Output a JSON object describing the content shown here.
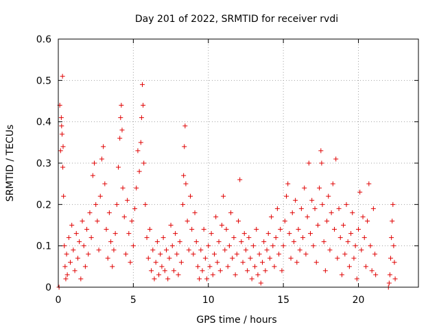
{
  "chart_data": {
    "type": "scatter",
    "title": "Day 201 of 2022, SRMTID for receiver rvdi",
    "xlabel": "GPS time / hours",
    "ylabel": "SRMTID / TECUs",
    "xlim": [
      0,
      24
    ],
    "ylim": [
      0,
      0.6
    ],
    "xticks": [
      0,
      5,
      10,
      15,
      20
    ],
    "xtick_labels": [
      "0",
      "5",
      "10",
      "15",
      "20"
    ],
    "yticks": [
      0,
      0.1,
      0.2,
      0.3,
      0.4,
      0.5,
      0.6
    ],
    "ytick_labels": [
      "0",
      "0.1",
      "0.2",
      "0.3",
      "0.4",
      "0.5",
      "0.6"
    ],
    "grid": true,
    "marker": "+",
    "color": "#e00000",
    "series": [
      {
        "name": "SRMTID",
        "points": [
          [
            0.05,
            0.0
          ],
          [
            0.1,
            0.44
          ],
          [
            0.15,
            0.33
          ],
          [
            0.2,
            0.41
          ],
          [
            0.22,
            0.39
          ],
          [
            0.25,
            0.37
          ],
          [
            0.28,
            0.51
          ],
          [
            0.3,
            0.29
          ],
          [
            0.32,
            0.34
          ],
          [
            0.35,
            0.22
          ],
          [
            0.4,
            0.1
          ],
          [
            0.45,
            0.05
          ],
          [
            0.5,
            0.02
          ],
          [
            0.55,
            0.08
          ],
          [
            0.6,
            0.03
          ],
          [
            0.7,
            0.12
          ],
          [
            0.8,
            0.06
          ],
          [
            0.9,
            0.15
          ],
          [
            1.0,
            0.09
          ],
          [
            1.1,
            0.04
          ],
          [
            1.2,
            0.13
          ],
          [
            1.3,
            0.07
          ],
          [
            1.4,
            0.11
          ],
          [
            1.5,
            0.02
          ],
          [
            1.6,
            0.16
          ],
          [
            1.7,
            0.1
          ],
          [
            1.8,
            0.05
          ],
          [
            1.9,
            0.14
          ],
          [
            2.0,
            0.08
          ],
          [
            2.1,
            0.18
          ],
          [
            2.2,
            0.12
          ],
          [
            2.3,
            0.27
          ],
          [
            2.4,
            0.3
          ],
          [
            2.5,
            0.2
          ],
          [
            2.6,
            0.16
          ],
          [
            2.7,
            0.09
          ],
          [
            2.8,
            0.22
          ],
          [
            2.9,
            0.31
          ],
          [
            3.0,
            0.34
          ],
          [
            3.1,
            0.25
          ],
          [
            3.2,
            0.14
          ],
          [
            3.3,
            0.07
          ],
          [
            3.4,
            0.18
          ],
          [
            3.5,
            0.11
          ],
          [
            3.6,
            0.05
          ],
          [
            3.7,
            0.09
          ],
          [
            3.8,
            0.13
          ],
          [
            3.9,
            0.2
          ],
          [
            4.0,
            0.29
          ],
          [
            4.1,
            0.36
          ],
          [
            4.15,
            0.41
          ],
          [
            4.2,
            0.44
          ],
          [
            4.25,
            0.38
          ],
          [
            4.3,
            0.24
          ],
          [
            4.4,
            0.17
          ],
          [
            4.5,
            0.08
          ],
          [
            4.6,
            0.21
          ],
          [
            4.7,
            0.13
          ],
          [
            4.8,
            0.06
          ],
          [
            4.9,
            0.16
          ],
          [
            5.0,
            0.1
          ],
          [
            5.1,
            0.19
          ],
          [
            5.2,
            0.24
          ],
          [
            5.3,
            0.33
          ],
          [
            5.4,
            0.28
          ],
          [
            5.5,
            0.35
          ],
          [
            5.55,
            0.41
          ],
          [
            5.6,
            0.49
          ],
          [
            5.65,
            0.44
          ],
          [
            5.7,
            0.3
          ],
          [
            5.8,
            0.2
          ],
          [
            5.9,
            0.12
          ],
          [
            6.0,
            0.07
          ],
          [
            6.1,
            0.14
          ],
          [
            6.2,
            0.04
          ],
          [
            6.3,
            0.09
          ],
          [
            6.4,
            0.02
          ],
          [
            6.5,
            0.06
          ],
          [
            6.6,
            0.11
          ],
          [
            6.7,
            0.03
          ],
          [
            6.8,
            0.08
          ],
          [
            6.9,
            0.05
          ],
          [
            7.0,
            0.12
          ],
          [
            7.1,
            0.04
          ],
          [
            7.2,
            0.09
          ],
          [
            7.3,
            0.02
          ],
          [
            7.4,
            0.07
          ],
          [
            7.5,
            0.15
          ],
          [
            7.6,
            0.1
          ],
          [
            7.7,
            0.04
          ],
          [
            7.8,
            0.13
          ],
          [
            7.9,
            0.08
          ],
          [
            8.0,
            0.03
          ],
          [
            8.1,
            0.11
          ],
          [
            8.2,
            0.06
          ],
          [
            8.3,
            0.2
          ],
          [
            8.35,
            0.27
          ],
          [
            8.4,
            0.34
          ],
          [
            8.45,
            0.39
          ],
          [
            8.5,
            0.25
          ],
          [
            8.6,
            0.16
          ],
          [
            8.7,
            0.09
          ],
          [
            8.8,
            0.22
          ],
          [
            8.9,
            0.14
          ],
          [
            9.0,
            0.08
          ],
          [
            9.1,
            0.18
          ],
          [
            9.2,
            0.11
          ],
          [
            9.3,
            0.05
          ],
          [
            9.4,
            0.02
          ],
          [
            9.5,
            0.09
          ],
          [
            9.6,
            0.04
          ],
          [
            9.7,
            0.14
          ],
          [
            9.8,
            0.07
          ],
          [
            9.9,
            0.02
          ],
          [
            10.0,
            0.1
          ],
          [
            10.1,
            0.05
          ],
          [
            10.2,
            0.13
          ],
          [
            10.3,
            0.03
          ],
          [
            10.4,
            0.08
          ],
          [
            10.5,
            0.17
          ],
          [
            10.6,
            0.06
          ],
          [
            10.7,
            0.11
          ],
          [
            10.8,
            0.04
          ],
          [
            10.9,
            0.15
          ],
          [
            11.0,
            0.22
          ],
          [
            11.1,
            0.09
          ],
          [
            11.2,
            0.14
          ],
          [
            11.3,
            0.05
          ],
          [
            11.4,
            0.1
          ],
          [
            11.5,
            0.18
          ],
          [
            11.6,
            0.07
          ],
          [
            11.7,
            0.12
          ],
          [
            11.8,
            0.03
          ],
          [
            11.9,
            0.08
          ],
          [
            12.0,
            0.16
          ],
          [
            12.1,
            0.26
          ],
          [
            12.2,
            0.11
          ],
          [
            12.3,
            0.06
          ],
          [
            12.4,
            0.13
          ],
          [
            12.5,
            0.09
          ],
          [
            12.6,
            0.04
          ],
          [
            12.7,
            0.12
          ],
          [
            12.8,
            0.07
          ],
          [
            12.9,
            0.02
          ],
          [
            13.0,
            0.1
          ],
          [
            13.1,
            0.05
          ],
          [
            13.2,
            0.14
          ],
          [
            13.3,
            0.03
          ],
          [
            13.4,
            0.08
          ],
          [
            13.5,
            0.01
          ],
          [
            13.6,
            0.06
          ],
          [
            13.7,
            0.11
          ],
          [
            13.8,
            0.04
          ],
          [
            13.9,
            0.09
          ],
          [
            14.0,
            0.13
          ],
          [
            14.1,
            0.07
          ],
          [
            14.2,
            0.17
          ],
          [
            14.3,
            0.1
          ],
          [
            14.4,
            0.05
          ],
          [
            14.5,
            0.12
          ],
          [
            14.6,
            0.19
          ],
          [
            14.7,
            0.08
          ],
          [
            14.8,
            0.14
          ],
          [
            14.9,
            0.04
          ],
          [
            15.0,
            0.1
          ],
          [
            15.1,
            0.16
          ],
          [
            15.2,
            0.22
          ],
          [
            15.3,
            0.25
          ],
          [
            15.4,
            0.13
          ],
          [
            15.5,
            0.07
          ],
          [
            15.6,
            0.18
          ],
          [
            15.7,
            0.11
          ],
          [
            15.8,
            0.21
          ],
          [
            15.9,
            0.06
          ],
          [
            16.0,
            0.14
          ],
          [
            16.1,
            0.09
          ],
          [
            16.2,
            0.19
          ],
          [
            16.3,
            0.12
          ],
          [
            16.4,
            0.24
          ],
          [
            16.5,
            0.08
          ],
          [
            16.6,
            0.17
          ],
          [
            16.7,
            0.3
          ],
          [
            16.8,
            0.13
          ],
          [
            16.9,
            0.21
          ],
          [
            17.0,
            0.1
          ],
          [
            17.1,
            0.19
          ],
          [
            17.2,
            0.06
          ],
          [
            17.3,
            0.15
          ],
          [
            17.4,
            0.24
          ],
          [
            17.5,
            0.33
          ],
          [
            17.55,
            0.3
          ],
          [
            17.6,
            0.2
          ],
          [
            17.7,
            0.11
          ],
          [
            17.8,
            0.04
          ],
          [
            17.9,
            0.16
          ],
          [
            18.0,
            0.22
          ],
          [
            18.1,
            0.09
          ],
          [
            18.2,
            0.18
          ],
          [
            18.3,
            0.25
          ],
          [
            18.4,
            0.14
          ],
          [
            18.5,
            0.31
          ],
          [
            18.6,
            0.07
          ],
          [
            18.7,
            0.19
          ],
          [
            18.8,
            0.12
          ],
          [
            18.9,
            0.03
          ],
          [
            19.0,
            0.15
          ],
          [
            19.1,
            0.08
          ],
          [
            19.2,
            0.2
          ],
          [
            19.3,
            0.11
          ],
          [
            19.4,
            0.05
          ],
          [
            19.5,
            0.13
          ],
          [
            19.6,
            0.18
          ],
          [
            19.7,
            0.07
          ],
          [
            19.8,
            0.1
          ],
          [
            19.9,
            0.02
          ],
          [
            20.0,
            0.14
          ],
          [
            20.1,
            0.23
          ],
          [
            20.2,
            0.09
          ],
          [
            20.3,
            0.17
          ],
          [
            20.4,
            0.12
          ],
          [
            20.5,
            0.05
          ],
          [
            20.6,
            0.16
          ],
          [
            20.7,
            0.25
          ],
          [
            20.8,
            0.1
          ],
          [
            20.9,
            0.04
          ],
          [
            21.0,
            0.19
          ],
          [
            21.1,
            0.08
          ],
          [
            21.15,
            0.03
          ],
          [
            22.0,
            0.0
          ],
          [
            22.05,
            0.01
          ],
          [
            22.1,
            0.03
          ],
          [
            22.15,
            0.07
          ],
          [
            22.2,
            0.12
          ],
          [
            22.25,
            0.16
          ],
          [
            22.3,
            0.2
          ],
          [
            22.35,
            0.1
          ],
          [
            22.4,
            0.06
          ],
          [
            22.45,
            0.02
          ]
        ]
      }
    ]
  }
}
